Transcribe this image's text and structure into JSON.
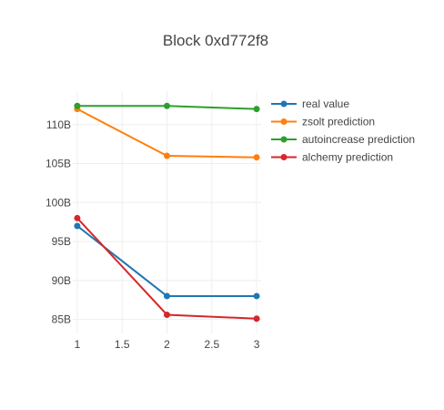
{
  "chart_data": {
    "type": "line",
    "title": "Block 0xd772f8",
    "xlabel": "",
    "ylabel": "",
    "x": [
      1,
      2,
      3
    ],
    "xlim": [
      0.95,
      3.05
    ],
    "ylim": [
      83.2,
      114.3
    ],
    "grid": true,
    "legend_position": "right",
    "x_ticks": [
      {
        "value": 1,
        "label": "1"
      },
      {
        "value": 1.5,
        "label": "1.5"
      },
      {
        "value": 2,
        "label": "2"
      },
      {
        "value": 2.5,
        "label": "2.5"
      },
      {
        "value": 3,
        "label": "3"
      }
    ],
    "y_ticks": [
      {
        "value": 85,
        "label": "85B"
      },
      {
        "value": 90,
        "label": "90B"
      },
      {
        "value": 95,
        "label": "95B"
      },
      {
        "value": 100,
        "label": "100B"
      },
      {
        "value": 105,
        "label": "105B"
      },
      {
        "value": 110,
        "label": "110B"
      }
    ],
    "series": [
      {
        "name": "real value",
        "color": "#1f77b4",
        "values": [
          97.0,
          88.0,
          88.0
        ]
      },
      {
        "name": "zsolt prediction",
        "color": "#ff7f0e",
        "values": [
          112.0,
          106.0,
          105.8
        ]
      },
      {
        "name": "autoincrease prediction",
        "color": "#2ca02c",
        "values": [
          112.4,
          112.4,
          112.0
        ]
      },
      {
        "name": "alchemy prediction",
        "color": "#d62728",
        "values": [
          98.0,
          85.6,
          85.1
        ]
      }
    ]
  }
}
